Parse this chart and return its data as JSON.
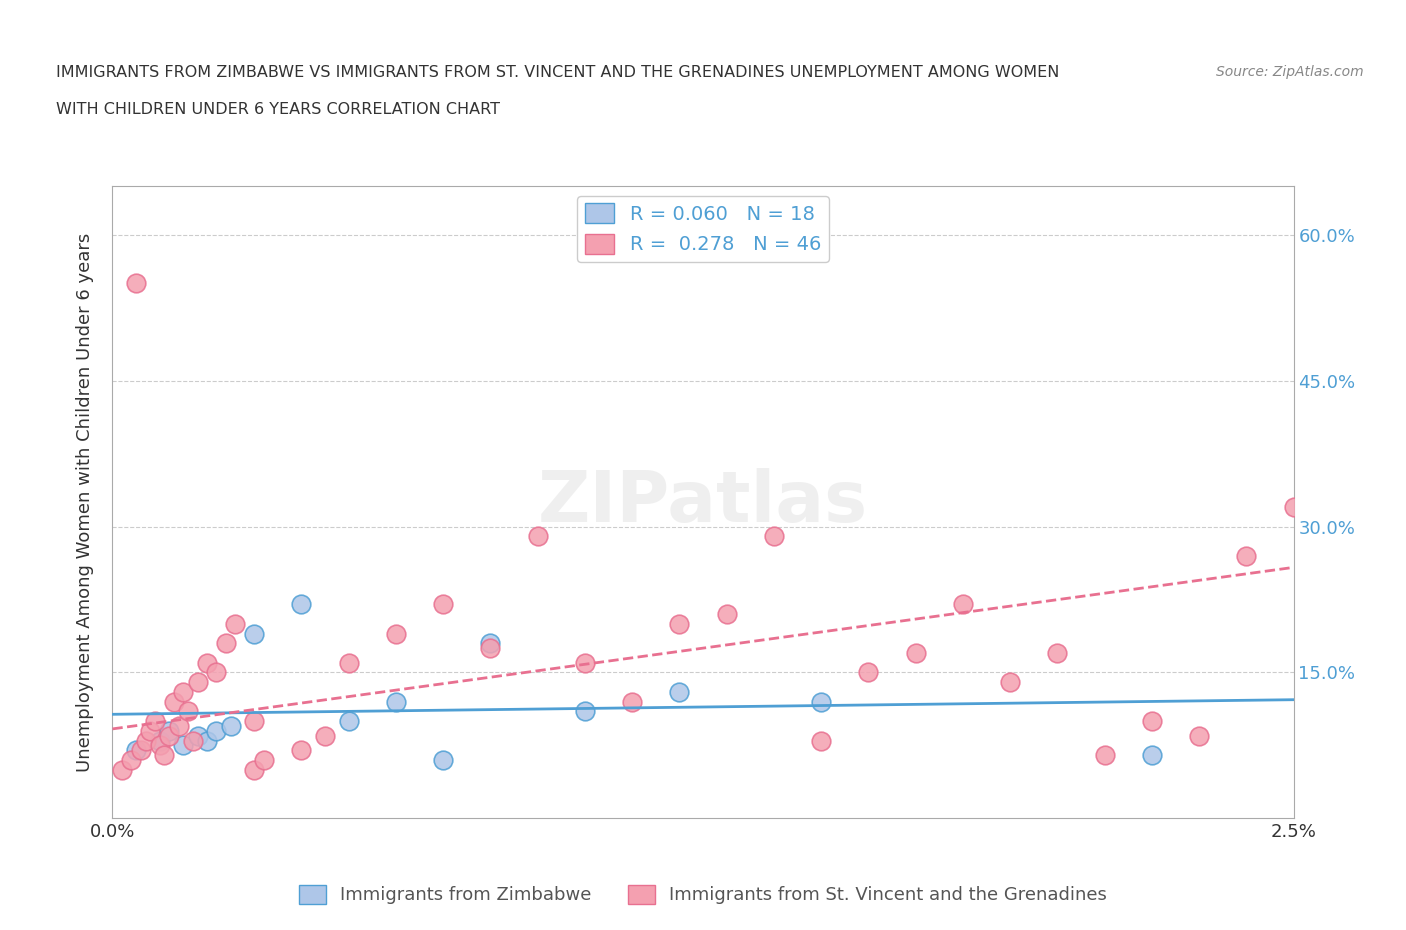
{
  "title_line1": "IMMIGRANTS FROM ZIMBABWE VS IMMIGRANTS FROM ST. VINCENT AND THE GRENADINES UNEMPLOYMENT AMONG WOMEN",
  "title_line2": "WITH CHILDREN UNDER 6 YEARS CORRELATION CHART",
  "source": "Source: ZipAtlas.com",
  "xlabel": "",
  "ylabel": "Unemployment Among Women with Children Under 6 years",
  "xlim": [
    0.0,
    0.025
  ],
  "ylim": [
    0.0,
    0.65
  ],
  "x_ticks": [
    0.0,
    0.025
  ],
  "x_tick_labels": [
    "0.0%",
    "2.5%"
  ],
  "y_ticks": [
    0.0,
    0.15,
    0.3,
    0.45,
    0.6
  ],
  "y_tick_labels": [
    "",
    "15.0%",
    "30.0%",
    "45.0%",
    "60.0%"
  ],
  "y_tick_labels_right": [
    "",
    "15.0%",
    "30.0%",
    "45.0%",
    "60.0%"
  ],
  "legend_entries": [
    {
      "label": "R = 0.060   N = 18",
      "color": "#aec6e8"
    },
    {
      "label": "R =  0.278   N = 46",
      "color": "#f4a0b0"
    }
  ],
  "legend_bottom": [
    {
      "label": "Immigrants from Zimbabwe",
      "color": "#aec6e8"
    },
    {
      "label": "Immigrants from St. Vincent and the Grenadines",
      "color": "#f4a0b0"
    }
  ],
  "watermark": "ZIPatlas",
  "blue_scatter_x": [
    0.0005,
    0.001,
    0.0012,
    0.0015,
    0.0018,
    0.002,
    0.0022,
    0.0025,
    0.003,
    0.004,
    0.005,
    0.006,
    0.007,
    0.008,
    0.01,
    0.012,
    0.015,
    0.022
  ],
  "blue_scatter_y": [
    0.07,
    0.08,
    0.09,
    0.075,
    0.085,
    0.08,
    0.09,
    0.095,
    0.19,
    0.22,
    0.1,
    0.12,
    0.06,
    0.18,
    0.11,
    0.13,
    0.12,
    0.065
  ],
  "pink_scatter_x": [
    0.0002,
    0.0004,
    0.0005,
    0.0006,
    0.0007,
    0.0008,
    0.0009,
    0.001,
    0.0011,
    0.0012,
    0.0013,
    0.0014,
    0.0015,
    0.0016,
    0.0017,
    0.0018,
    0.002,
    0.0022,
    0.0024,
    0.0026,
    0.003,
    0.0032,
    0.004,
    0.0045,
    0.005,
    0.006,
    0.007,
    0.008,
    0.009,
    0.01,
    0.011,
    0.012,
    0.013,
    0.014,
    0.015,
    0.016,
    0.017,
    0.018,
    0.019,
    0.02,
    0.021,
    0.022,
    0.023,
    0.024,
    0.025,
    0.003
  ],
  "pink_scatter_y": [
    0.05,
    0.06,
    0.55,
    0.07,
    0.08,
    0.09,
    0.1,
    0.075,
    0.065,
    0.085,
    0.12,
    0.095,
    0.13,
    0.11,
    0.08,
    0.14,
    0.16,
    0.15,
    0.18,
    0.2,
    0.05,
    0.06,
    0.07,
    0.085,
    0.16,
    0.19,
    0.22,
    0.175,
    0.29,
    0.16,
    0.12,
    0.2,
    0.21,
    0.29,
    0.08,
    0.15,
    0.17,
    0.22,
    0.14,
    0.17,
    0.065,
    0.1,
    0.085,
    0.27,
    0.32,
    0.1
  ],
  "blue_line_x": [
    0.0,
    0.025
  ],
  "blue_line_y": [
    0.107,
    0.122
  ],
  "pink_line_x": [
    0.0,
    0.025
  ],
  "pink_line_y": [
    0.092,
    0.258
  ],
  "blue_color": "#4f9fd4",
  "pink_color": "#e87090",
  "blue_fill": "#aec6e8",
  "pink_fill": "#f4a0b0",
  "grid_color": "#cccccc",
  "bg_color": "#ffffff"
}
